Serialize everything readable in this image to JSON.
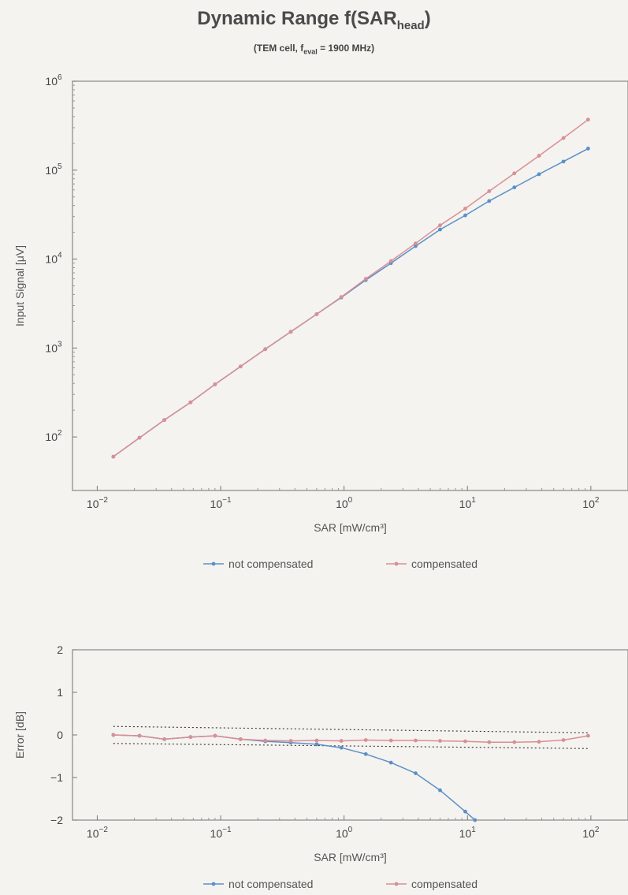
{
  "title": "Dynamic Range f(SAR",
  "title_sub": "head",
  "title_tail": ")",
  "subtitle": "(TEM cell, f",
  "subtitle_sub": "eval",
  "subtitle_tail": " = 1900 MHz)",
  "colors": {
    "not_compensated": "#5b8fc9",
    "compensated": "#d98f94",
    "limit": "#333333"
  },
  "chart_data": [
    {
      "type": "line",
      "xscale": "log",
      "yscale": "log",
      "xlabel": "SAR [mW/cm³]",
      "ylabel": "Input Signal [μV]",
      "xlim": [
        0.0063,
        200
      ],
      "ylim": [
        25,
        1000000
      ],
      "xticks": [
        {
          "v": 0.01,
          "b": "10",
          "e": "−2"
        },
        {
          "v": 0.1,
          "b": "10",
          "e": "−1"
        },
        {
          "v": 1,
          "b": "10",
          "e": "0"
        },
        {
          "v": 10,
          "b": "10",
          "e": "1"
        },
        {
          "v": 100,
          "b": "10",
          "e": "2"
        }
      ],
      "yticks": [
        {
          "v": 100,
          "b": "10",
          "e": "2"
        },
        {
          "v": 1000,
          "b": "10",
          "e": "3"
        },
        {
          "v": 10000,
          "b": "10",
          "e": "4"
        },
        {
          "v": 100000,
          "b": "10",
          "e": "5"
        },
        {
          "v": 1000000,
          "b": "10",
          "e": "6"
        }
      ],
      "legend": "bottom",
      "series": [
        {
          "name": "not compensated",
          "color_key": "not_compensated",
          "x": [
            0.0135,
            0.022,
            0.035,
            0.057,
            0.09,
            0.145,
            0.23,
            0.37,
            0.6,
            0.95,
            1.5,
            2.4,
            3.8,
            6.0,
            9.6,
            15,
            24,
            38,
            60,
            95
          ],
          "y": [
            60,
            98,
            155,
            245,
            390,
            620,
            970,
            1520,
            2400,
            3700,
            5800,
            9000,
            14000,
            21500,
            31000,
            45000,
            64000,
            90000,
            125000,
            175000
          ]
        },
        {
          "name": "compensated",
          "color_key": "compensated",
          "x": [
            0.0135,
            0.022,
            0.035,
            0.057,
            0.09,
            0.145,
            0.23,
            0.37,
            0.6,
            0.95,
            1.5,
            2.4,
            3.8,
            6.0,
            9.6,
            15,
            24,
            38,
            60,
            95
          ],
          "y": [
            60,
            98,
            155,
            245,
            390,
            620,
            970,
            1520,
            2400,
            3750,
            6000,
            9500,
            15000,
            24000,
            37000,
            58000,
            92000,
            145000,
            230000,
            370000
          ]
        }
      ]
    },
    {
      "type": "line",
      "xscale": "log",
      "yscale": "linear",
      "xlabel": "SAR [mW/cm³]",
      "ylabel": "Error [dB]",
      "xlim": [
        0.0063,
        200
      ],
      "ylim": [
        -2,
        2
      ],
      "xticks": [
        {
          "v": 0.01,
          "b": "10",
          "e": "−2"
        },
        {
          "v": 0.1,
          "b": "10",
          "e": "−1"
        },
        {
          "v": 1,
          "b": "10",
          "e": "0"
        },
        {
          "v": 10,
          "b": "10",
          "e": "1"
        },
        {
          "v": 100,
          "b": "10",
          "e": "2"
        }
      ],
      "yticks": [
        {
          "v": -2,
          "t": "−2"
        },
        {
          "v": -1,
          "t": "−1"
        },
        {
          "v": 0,
          "t": "0"
        },
        {
          "v": 1,
          "t": "1"
        },
        {
          "v": 2,
          "t": "2"
        }
      ],
      "legend": "bottom",
      "limits": [
        {
          "color_key": "compensated",
          "x": [
            0.0135,
            95
          ],
          "y": [
            0.2,
            0.05
          ]
        },
        {
          "color_key": "compensated",
          "x": [
            0.0135,
            95
          ],
          "y": [
            -0.2,
            -0.32
          ]
        }
      ],
      "series": [
        {
          "name": "not compensated",
          "color_key": "not_compensated",
          "x": [
            0.0135,
            0.022,
            0.035,
            0.057,
            0.09,
            0.145,
            0.23,
            0.37,
            0.6,
            0.95,
            1.5,
            2.4,
            3.8,
            6.0,
            9.6,
            11.5
          ],
          "y": [
            0,
            -0.02,
            -0.1,
            -0.05,
            -0.02,
            -0.1,
            -0.15,
            -0.18,
            -0.22,
            -0.3,
            -0.45,
            -0.65,
            -0.9,
            -1.3,
            -1.8,
            -2.0
          ]
        },
        {
          "name": "compensated",
          "color_key": "compensated",
          "x": [
            0.0135,
            0.022,
            0.035,
            0.057,
            0.09,
            0.145,
            0.23,
            0.37,
            0.6,
            0.95,
            1.5,
            2.4,
            3.8,
            6.0,
            9.6,
            15,
            24,
            38,
            60,
            95
          ],
          "y": [
            0,
            -0.02,
            -0.1,
            -0.05,
            -0.02,
            -0.1,
            -0.13,
            -0.14,
            -0.13,
            -0.14,
            -0.12,
            -0.13,
            -0.13,
            -0.14,
            -0.15,
            -0.17,
            -0.17,
            -0.16,
            -0.12,
            -0.02
          ]
        }
      ]
    }
  ]
}
